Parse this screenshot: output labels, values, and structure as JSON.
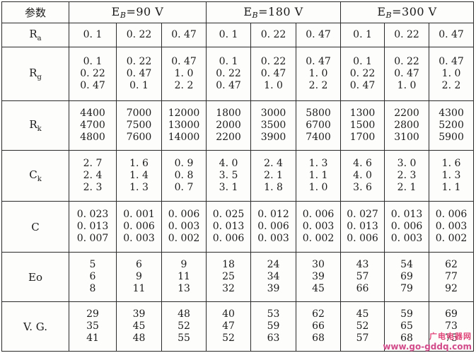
{
  "table": {
    "corner": "参数",
    "groups": [
      {
        "prefix": "E",
        "sub": "B",
        "value": "=90  V"
      },
      {
        "prefix": "E",
        "sub": "B",
        "value": "=180  V"
      },
      {
        "prefix": "E",
        "sub": "B",
        "value": "=300  V"
      }
    ],
    "rows": [
      {
        "name": "R",
        "sub": "a",
        "cells": [
          [
            "0. 1"
          ],
          [
            "0. 22"
          ],
          [
            "0. 47"
          ],
          [
            "0. 1"
          ],
          [
            "0. 22"
          ],
          [
            "0. 47"
          ],
          [
            "0. 1"
          ],
          [
            "0. 22"
          ],
          [
            "0. 47"
          ]
        ]
      },
      {
        "name": "R",
        "sub": "g",
        "cells": [
          [
            "0. 1",
            "0. 22",
            "0. 47"
          ],
          [
            "0. 22",
            "0. 47",
            "0. 1"
          ],
          [
            "0. 47",
            "1. 0",
            "2. 2"
          ],
          [
            "0. 1",
            "0. 22",
            "0. 47"
          ],
          [
            "0. 22",
            "0. 47",
            "1. 0"
          ],
          [
            "0. 47",
            "1. 0",
            "2. 2"
          ],
          [
            "0. 1",
            "0. 22",
            "0. 47"
          ],
          [
            "0. 22",
            "0. 47",
            "1. 0"
          ],
          [
            "0. 47",
            "1. 0",
            "2. 2"
          ]
        ]
      },
      {
        "name": "R",
        "sub": "k",
        "cells": [
          [
            "4400",
            "4700",
            "4800"
          ],
          [
            "7000",
            "7500",
            "7600"
          ],
          [
            "12000",
            "13000",
            "14000"
          ],
          [
            "1800",
            "2000",
            "2200"
          ],
          [
            "3000",
            "3500",
            "3900"
          ],
          [
            "5800",
            "6700",
            "7400"
          ],
          [
            "1300",
            "1500",
            "1700"
          ],
          [
            "2200",
            "2800",
            "3100"
          ],
          [
            "4300",
            "5200",
            "5900"
          ]
        ]
      },
      {
        "name": "C",
        "sub": "k",
        "cells": [
          [
            "2. 7",
            "2. 4",
            "2. 3"
          ],
          [
            "1. 6",
            "1. 4",
            "1. 3"
          ],
          [
            "0. 9",
            "0. 8",
            "0. 7"
          ],
          [
            "4. 0",
            "3. 5",
            "3. 1"
          ],
          [
            "2. 4",
            "2. 1",
            "1. 8"
          ],
          [
            "1. 3",
            "1. 1",
            "1. 0"
          ],
          [
            "4. 6",
            "4. 0",
            "3. 6"
          ],
          [
            "3. 0",
            "2. 3",
            "2. 1"
          ],
          [
            "1. 6",
            "1. 3",
            "1. 1"
          ]
        ]
      },
      {
        "name": "C",
        "sub": "",
        "cells": [
          [
            "0. 023",
            "0. 013",
            "0. 007"
          ],
          [
            "0. 001",
            "0. 006",
            "0. 003"
          ],
          [
            "0. 006",
            "0. 003",
            "0. 002"
          ],
          [
            "0. 025",
            "0. 013",
            "0. 006"
          ],
          [
            "0. 012",
            "0. 006",
            "0. 003"
          ],
          [
            "0. 006",
            "0. 003",
            "0. 002"
          ],
          [
            "0. 027",
            "0. 013",
            "0. 006"
          ],
          [
            "0. 013",
            "0. 006",
            "0. 003"
          ],
          [
            "0. 006",
            "0. 003",
            "0. 002"
          ]
        ]
      },
      {
        "name": "Eo",
        "sub": "",
        "cells": [
          [
            "5",
            "6",
            "8"
          ],
          [
            "6",
            "9",
            "11"
          ],
          [
            "9",
            "11",
            "13"
          ],
          [
            "18",
            "25",
            "32"
          ],
          [
            "24",
            "34",
            "39"
          ],
          [
            "30",
            "39",
            "45"
          ],
          [
            "43",
            "57",
            "66"
          ],
          [
            "54",
            "69",
            "79"
          ],
          [
            "62",
            "77",
            "92"
          ]
        ]
      },
      {
        "name": "V. G.",
        "sub": "",
        "cells": [
          [
            "29",
            "35",
            "41"
          ],
          [
            "39",
            "45",
            "48"
          ],
          [
            "48",
            "52",
            "55"
          ],
          [
            "40",
            "47",
            "52"
          ],
          [
            "53",
            "59",
            "63"
          ],
          [
            "62",
            "66",
            "68"
          ],
          [
            "45",
            "52",
            "57"
          ],
          [
            "59",
            "65",
            "68"
          ],
          [
            "69",
            "73",
            "75"
          ]
        ]
      }
    ]
  },
  "watermark": {
    "site_name": "广电电器网",
    "url": "www.go-gddq.com"
  }
}
